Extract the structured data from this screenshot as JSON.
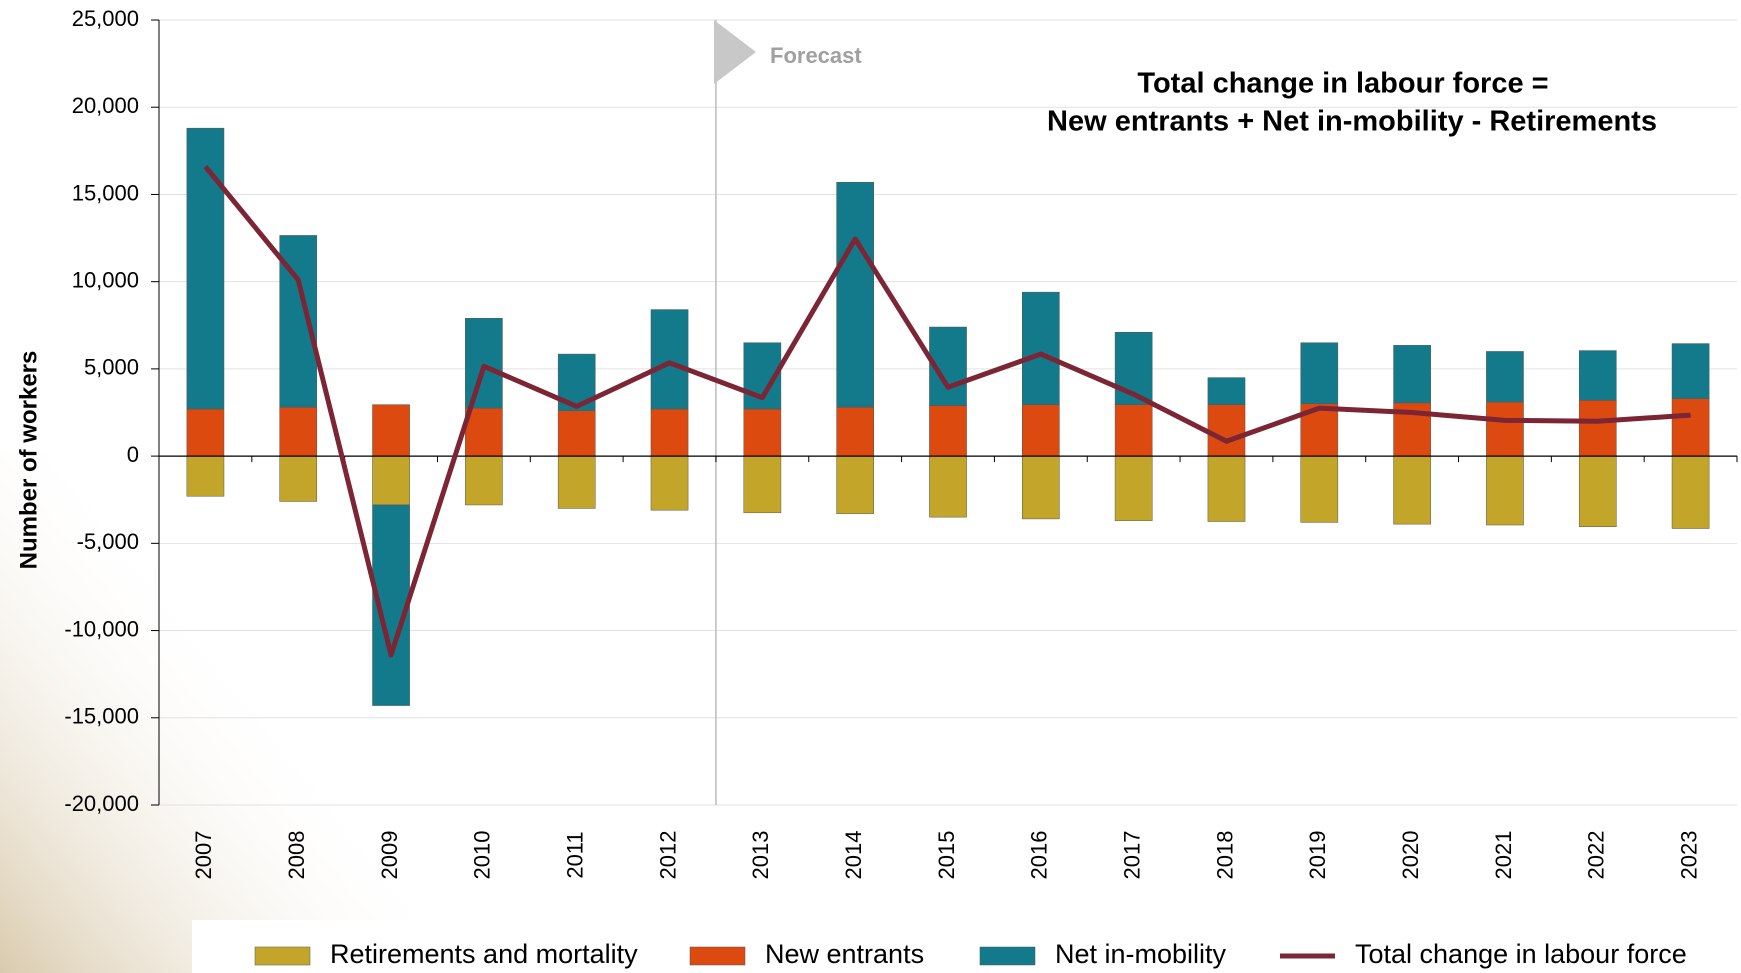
{
  "chart_data": {
    "type": "bar",
    "stacked": true,
    "y_label": "Number of workers",
    "annotations": [
      "Forecast",
      "Total change in labour force =",
      "New entrants + Net in-mobility - Retirements"
    ],
    "categories": [
      "2007",
      "2008",
      "2009",
      "2010",
      "2011",
      "2012",
      "2013",
      "2014",
      "2015",
      "2016",
      "2017",
      "2018",
      "2019",
      "2020",
      "2021",
      "2022",
      "2023"
    ],
    "series": [
      {
        "name": "Retirements and mortality",
        "type": "bar",
        "color": "#c3a629",
        "values": [
          -2300,
          -2600,
          -2800,
          -2800,
          -3000,
          -3100,
          -3250,
          -3300,
          -3500,
          -3600,
          -3700,
          -3750,
          -3800,
          -3900,
          -3950,
          -4050,
          -4150
        ]
      },
      {
        "name": "New entrants",
        "type": "bar",
        "color": "#dd4a10",
        "values": [
          2700,
          2800,
          2950,
          2750,
          2600,
          2700,
          2700,
          2800,
          2900,
          2950,
          2950,
          2950,
          3000,
          3050,
          3100,
          3200,
          3300
        ]
      },
      {
        "name": "Net in-mobility",
        "type": "bar",
        "color": "#137a8c",
        "values": [
          16100,
          9850,
          -11500,
          5150,
          3250,
          5700,
          3800,
          12900,
          4500,
          6450,
          4150,
          1550,
          3500,
          3300,
          2900,
          2850,
          3150
        ]
      },
      {
        "name": "Total change in labour force",
        "type": "line",
        "color": "#7b2535",
        "values": [
          16600,
          10100,
          -11400,
          5150,
          2850,
          5350,
          3350,
          12450,
          3950,
          5850,
          3550,
          850,
          2750,
          2500,
          2050,
          2000,
          2350
        ]
      }
    ],
    "ylim": [
      -20000,
      25000
    ],
    "yticks": [
      {
        "value": -20000,
        "label": "-20,000"
      },
      {
        "value": -15000,
        "label": "-15,000"
      },
      {
        "value": -10000,
        "label": "-10,000"
      },
      {
        "value": -5000,
        "label": "-5,000"
      },
      0,
      {
        "value": 5000,
        "label": "5,000"
      },
      {
        "value": 10000,
        "label": "10,000"
      },
      {
        "value": 15000,
        "label": "15,000"
      },
      {
        "value": 20000,
        "label": "20,000"
      },
      {
        "value": 25000,
        "label": "25,000"
      }
    ],
    "grid": true,
    "legend": "bottom"
  }
}
